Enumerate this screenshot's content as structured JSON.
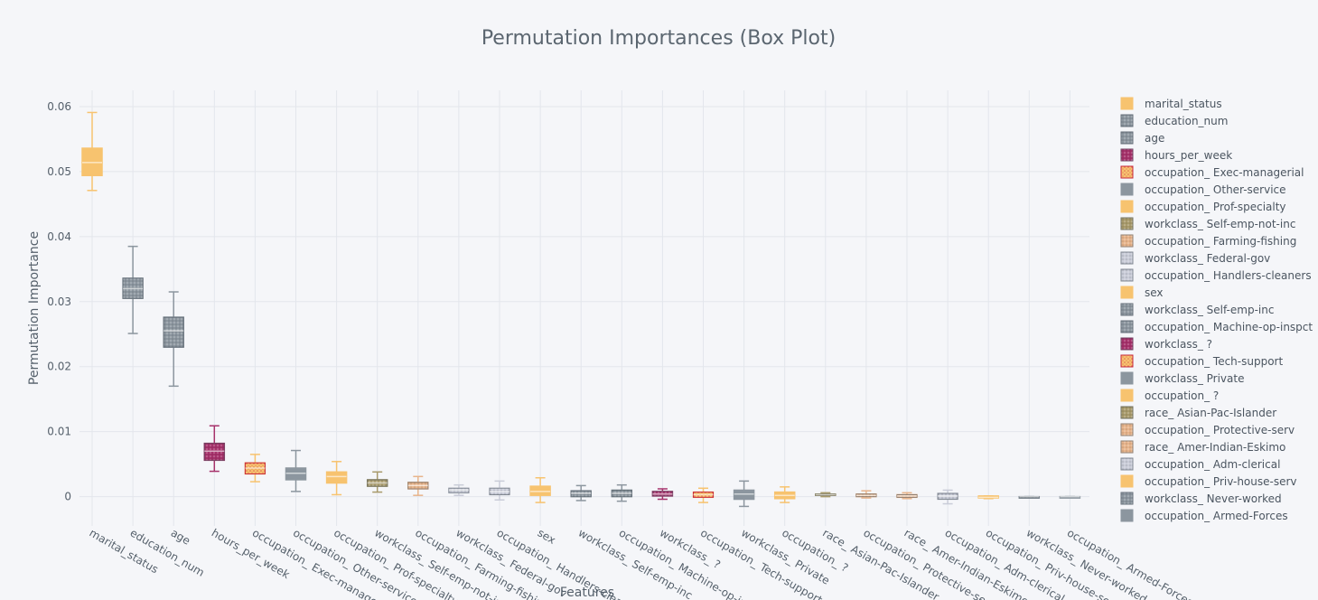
{
  "chart_data": {
    "type": "box",
    "title": "Permutation Importances (Box Plot)",
    "xlabel": "Features",
    "ylabel": "Permutation Importance",
    "ylim": [
      -0.0045,
      0.0625
    ],
    "yticks": [
      0,
      0.01,
      0.02,
      0.03,
      0.04,
      0.05,
      0.06
    ],
    "ytick_labels": [
      "0",
      "0.01",
      "0.02",
      "0.03",
      "0.04",
      "0.05",
      "0.06"
    ],
    "grid": true,
    "legend_position": "right",
    "colors": {
      "orange": "#f7c36f",
      "slate": "#8c969f",
      "magenta": "#a6326b",
      "peach": "#e7b48b",
      "lavender": "#c9ccd8",
      "olive": "#a89a6b"
    },
    "series": [
      {
        "name": "marital_status",
        "color_key": "orange",
        "pattern": "none",
        "min": 0.0471,
        "q1": 0.0494,
        "median": 0.0514,
        "q3": 0.0536,
        "max": 0.0591
      },
      {
        "name": "education_num",
        "color_key": "slate",
        "pattern": "dots",
        "min": 0.0251,
        "q1": 0.0305,
        "median": 0.032,
        "q3": 0.0336,
        "max": 0.0385
      },
      {
        "name": "age",
        "color_key": "slate",
        "pattern": "dots",
        "min": 0.017,
        "q1": 0.023,
        "median": 0.0255,
        "q3": 0.0276,
        "max": 0.0315
      },
      {
        "name": "hours_per_week",
        "color_key": "magenta",
        "pattern": "dots",
        "min": 0.0039,
        "q1": 0.0056,
        "median": 0.007,
        "q3": 0.0082,
        "max": 0.0109
      },
      {
        "name": "occupation_ Exec-managerial",
        "color_key": "orange",
        "pattern": "dots-red",
        "min": 0.0023,
        "q1": 0.0035,
        "median": 0.0044,
        "q3": 0.0052,
        "max": 0.0065
      },
      {
        "name": "occupation_ Other-service",
        "color_key": "slate",
        "pattern": "none",
        "min": 0.0008,
        "q1": 0.0026,
        "median": 0.0036,
        "q3": 0.0044,
        "max": 0.0071
      },
      {
        "name": "occupation_ Prof-specialty",
        "color_key": "orange",
        "pattern": "none",
        "min": 0.0003,
        "q1": 0.0021,
        "median": 0.0031,
        "q3": 0.0038,
        "max": 0.0054
      },
      {
        "name": "workclass_ Self-emp-not-inc",
        "color_key": "olive",
        "pattern": "dots",
        "min": 0.0007,
        "q1": 0.0016,
        "median": 0.0021,
        "q3": 0.0026,
        "max": 0.0038
      },
      {
        "name": "occupation_ Farming-fishing",
        "color_key": "peach",
        "pattern": "dots",
        "min": 0.0002,
        "q1": 0.0012,
        "median": 0.0017,
        "q3": 0.0022,
        "max": 0.0031
      },
      {
        "name": "workclass_ Federal-gov",
        "color_key": "lavender",
        "pattern": "dots",
        "min": 0.0002,
        "q1": 0.0006,
        "median": 0.001,
        "q3": 0.0013,
        "max": 0.0018
      },
      {
        "name": "occupation_ Handlers-cleaners",
        "color_key": "lavender",
        "pattern": "dots",
        "min": -0.0005,
        "q1": 0.0003,
        "median": 0.0008,
        "q3": 0.0013,
        "max": 0.0024
      },
      {
        "name": "sex",
        "color_key": "orange",
        "pattern": "none",
        "min": -0.0009,
        "q1": 0.0002,
        "median": 0.0008,
        "q3": 0.0016,
        "max": 0.0029
      },
      {
        "name": "workclass_ Self-emp-inc",
        "color_key": "slate",
        "pattern": "dots",
        "min": -0.0006,
        "q1": 0.0,
        "median": 0.0005,
        "q3": 0.0009,
        "max": 0.0017
      },
      {
        "name": "occupation_ Machine-op-inspct",
        "color_key": "slate",
        "pattern": "dots",
        "min": -0.0007,
        "q1": 0.0,
        "median": 0.0005,
        "q3": 0.001,
        "max": 0.0018
      },
      {
        "name": "workclass_ ?",
        "color_key": "magenta",
        "pattern": "dots",
        "min": -0.0004,
        "q1": 0.0001,
        "median": 0.0004,
        "q3": 0.0008,
        "max": 0.0012
      },
      {
        "name": "occupation_ Tech-support",
        "color_key": "orange",
        "pattern": "dots-red",
        "min": -0.0009,
        "q1": -0.0001,
        "median": 0.0003,
        "q3": 0.0007,
        "max": 0.0013
      },
      {
        "name": "workclass_ Private",
        "color_key": "slate",
        "pattern": "none",
        "min": -0.0015,
        "q1": -0.0004,
        "median": 0.0004,
        "q3": 0.001,
        "max": 0.0024
      },
      {
        "name": "occupation_ ?",
        "color_key": "orange",
        "pattern": "none",
        "min": -0.0009,
        "q1": -0.0003,
        "median": 0.0002,
        "q3": 0.0007,
        "max": 0.0015
      },
      {
        "name": "race_ Asian-Pac-Islander",
        "color_key": "olive",
        "pattern": "dots",
        "min": 0.0,
        "q1": 0.0002,
        "median": 0.0003,
        "q3": 0.0004,
        "max": 0.0006
      },
      {
        "name": "occupation_ Protective-serv",
        "color_key": "peach",
        "pattern": "dots",
        "min": -0.0002,
        "q1": 0.0,
        "median": 0.0002,
        "q3": 0.0004,
        "max": 0.0009
      },
      {
        "name": "race_ Amer-Indian-Eskimo",
        "color_key": "peach",
        "pattern": "dots",
        "min": -0.0003,
        "q1": -0.0001,
        "median": 0.0001,
        "q3": 0.0003,
        "max": 0.0006
      },
      {
        "name": "occupation_ Adm-clerical",
        "color_key": "lavender",
        "pattern": "dots",
        "min": -0.0011,
        "q1": -0.0004,
        "median": 0.0001,
        "q3": 0.0005,
        "max": 0.001
      },
      {
        "name": "occupation_ Priv-house-serv",
        "color_key": "orange",
        "pattern": "none",
        "min": -0.0003,
        "q1": -0.0002,
        "median": -0.0001,
        "q3": 0.0001,
        "max": 0.0001
      },
      {
        "name": "workclass_ Never-worked",
        "color_key": "slate",
        "pattern": "dots",
        "min": 0,
        "q1": 0,
        "median": 0,
        "q3": 0,
        "max": 0
      },
      {
        "name": "occupation_ Armed-Forces",
        "color_key": "slate",
        "pattern": "none",
        "min": 0,
        "q1": 0,
        "median": 0,
        "q3": 0,
        "max": 0
      }
    ]
  }
}
